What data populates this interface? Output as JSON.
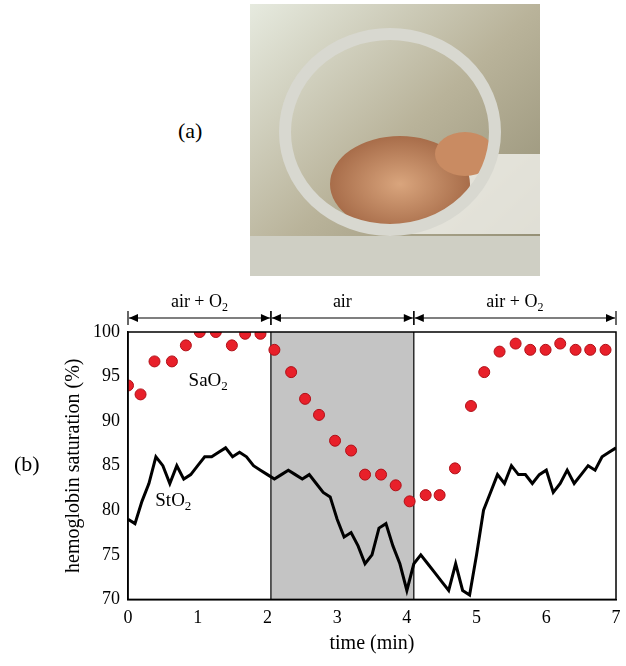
{
  "photo": {
    "label": "(a)"
  },
  "chart_data": {
    "type": "scatter",
    "panel_label": "(b)",
    "x_label": "time (min)",
    "y_label": "hemoglobin saturation (%)",
    "xlim": [
      0,
      7
    ],
    "xticks": [
      0,
      1,
      2,
      3,
      4,
      5,
      6,
      7
    ],
    "ylim": [
      70,
      100
    ],
    "yticks": [
      70,
      75,
      80,
      85,
      90,
      95,
      100
    ],
    "grid": false,
    "phases": [
      {
        "label": "air + O2",
        "start": 0,
        "end": 2.05,
        "shaded": false
      },
      {
        "label": "air",
        "start": 2.05,
        "end": 4.1,
        "shaded": true,
        "color": "#c4c4c4"
      },
      {
        "label": "air + O2",
        "start": 4.1,
        "end": 7,
        "shaded": false
      }
    ],
    "annotations": [
      {
        "text": "SaO2",
        "x": 1.15,
        "y": 94.5
      },
      {
        "text": "StO2",
        "x": 0.65,
        "y": 81
      }
    ],
    "series": [
      {
        "name": "SaO2",
        "type": "scatter",
        "marker": "circle",
        "color": "#e8202a",
        "x": [
          0,
          0.18,
          0.38,
          0.63,
          0.83,
          1.03,
          1.26,
          1.49,
          1.68,
          1.9,
          2.1,
          2.34,
          2.54,
          2.74,
          2.97,
          3.2,
          3.4,
          3.63,
          3.84,
          4.04,
          4.27,
          4.47,
          4.69,
          4.92,
          5.11,
          5.33,
          5.56,
          5.77,
          5.99,
          6.2,
          6.42,
          6.63,
          6.85
        ],
        "values": [
          94,
          93,
          96.7,
          96.7,
          98.5,
          100,
          100,
          98.5,
          99.8,
          99.8,
          98,
          95.5,
          92.5,
          90.7,
          87.8,
          86.7,
          84,
          84,
          82.8,
          81,
          81.7,
          81.7,
          84.7,
          91.7,
          95.5,
          97.8,
          98.7,
          98,
          98,
          98.7,
          98,
          98,
          98
        ]
      },
      {
        "name": "StO2",
        "type": "line",
        "line_style": "solid",
        "color": "#000000",
        "x": [
          0,
          0.1,
          0.2,
          0.3,
          0.4,
          0.5,
          0.6,
          0.7,
          0.8,
          0.9,
          1,
          1.1,
          1.2,
          1.3,
          1.4,
          1.5,
          1.6,
          1.7,
          1.8,
          1.9,
          2,
          2.1,
          2.2,
          2.3,
          2.4,
          2.5,
          2.6,
          2.7,
          2.8,
          2.9,
          3,
          3.1,
          3.2,
          3.3,
          3.4,
          3.5,
          3.6,
          3.7,
          3.8,
          3.9,
          4,
          4.1,
          4.2,
          4.3,
          4.4,
          4.5,
          4.6,
          4.7,
          4.8,
          4.9,
          5,
          5.1,
          5.2,
          5.3,
          5.4,
          5.5,
          5.6,
          5.7,
          5.8,
          5.9,
          6,
          6.1,
          6.2,
          6.3,
          6.4,
          6.5,
          6.6,
          6.7,
          6.8,
          6.9,
          7
        ],
        "values": [
          79,
          78.5,
          81,
          83,
          86,
          85,
          83,
          85,
          83.5,
          84,
          85,
          86,
          86,
          86.5,
          87,
          86,
          86.5,
          86,
          85,
          84.5,
          84,
          83.5,
          84,
          84.5,
          84,
          83.5,
          84,
          83,
          82,
          81.5,
          79,
          77,
          77.5,
          76,
          74,
          75,
          78,
          78.5,
          76,
          74,
          71,
          74,
          75,
          74,
          73,
          72,
          71,
          74,
          71,
          70.5,
          75,
          80,
          82,
          84,
          83,
          85,
          84,
          84,
          83,
          84,
          84.5,
          82,
          83,
          84.5,
          83,
          84,
          85,
          84.5,
          86,
          86.5,
          87
        ]
      }
    ]
  }
}
